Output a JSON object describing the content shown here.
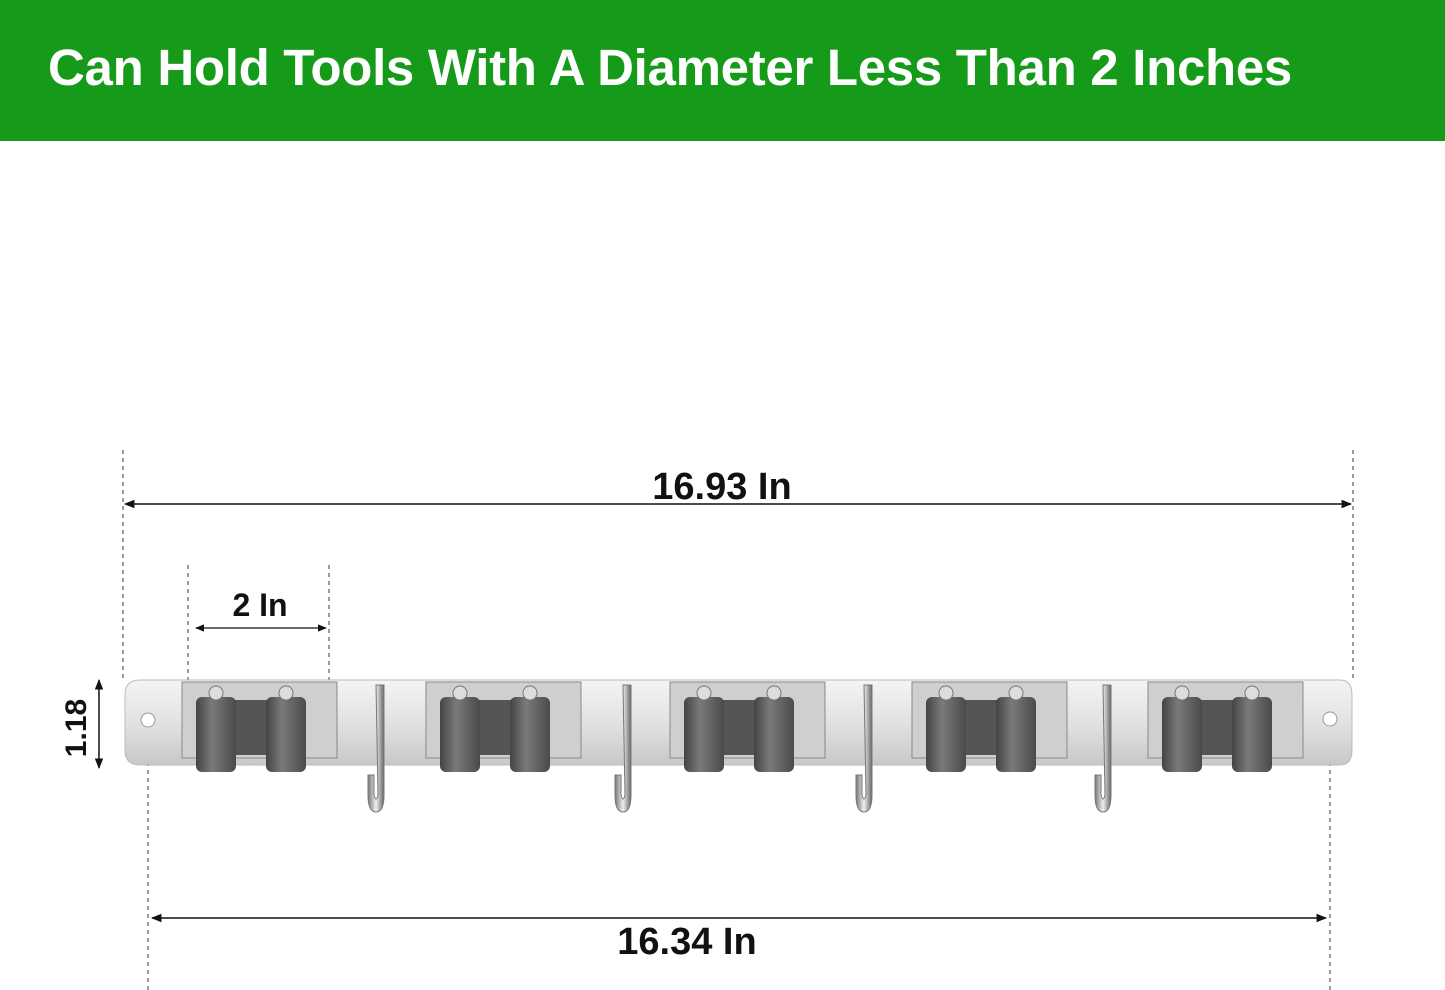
{
  "banner": {
    "title": "Can Hold Tools With A Diameter Less Than 2 Inches",
    "color": "#169a1a"
  },
  "dimensions": {
    "overall_length": "16.93 In",
    "hole_spacing": "16.34 In",
    "holder_width": "2 In",
    "height": "1.18"
  },
  "product": {
    "holders": 5,
    "hooks": 4,
    "metal_color": "#d9d9d9",
    "roller_color": "#5c5c5c"
  }
}
